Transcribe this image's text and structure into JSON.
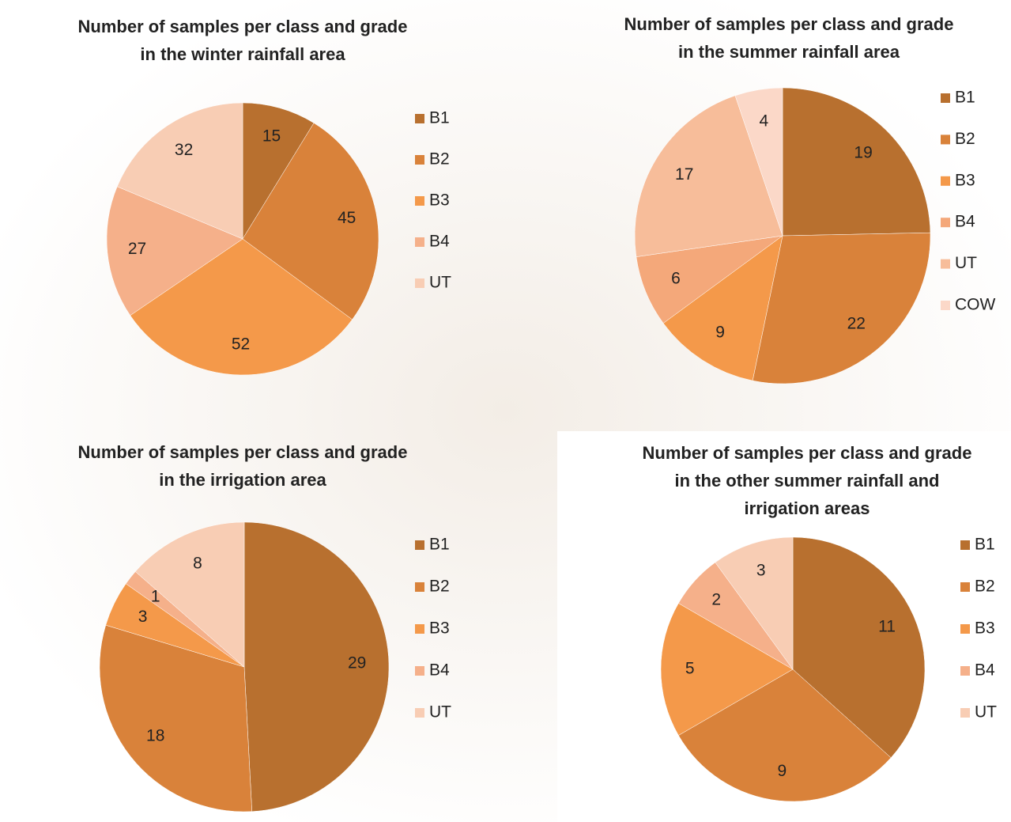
{
  "chart_data": [
    {
      "type": "pie",
      "title": [
        "Number of samples per class and grade",
        "in the winter rainfall area"
      ],
      "categories": [
        "B1",
        "B2",
        "B3",
        "B4",
        "UT"
      ],
      "values": [
        15,
        45,
        52,
        27,
        32
      ],
      "colors": [
        "#b8702f",
        "#d9823a",
        "#f4994a",
        "#f5b08a",
        "#f8cdb4"
      ]
    },
    {
      "type": "pie",
      "title": [
        "Number of samples per class and grade",
        "in the summer rainfall area"
      ],
      "categories": [
        "B1",
        "B2",
        "B3",
        "B4",
        "UT",
        "COW"
      ],
      "values": [
        19,
        22,
        9,
        6,
        17,
        4
      ],
      "colors": [
        "#b8702f",
        "#d9823a",
        "#f4994a",
        "#f4a87a",
        "#f7bd9a",
        "#fbd8c8"
      ]
    },
    {
      "type": "pie",
      "title": [
        "Number of samples per class and grade",
        "in the irrigation area"
      ],
      "categories": [
        "B1",
        "B2",
        "B3",
        "B4",
        "UT"
      ],
      "values": [
        29,
        18,
        3,
        1,
        8
      ],
      "colors": [
        "#b8702f",
        "#d9823a",
        "#f4994a",
        "#f5b08a",
        "#f8cdb4"
      ]
    },
    {
      "type": "pie",
      "title": [
        "Number of samples per class and grade",
        "in the other summer rainfall and",
        "irrigation areas"
      ],
      "categories": [
        "B1",
        "B2",
        "B3",
        "B4",
        "UT"
      ],
      "values": [
        11,
        9,
        5,
        2,
        3
      ],
      "colors": [
        "#b8702f",
        "#d9823a",
        "#f4994a",
        "#f5b08a",
        "#f8cdb4"
      ]
    }
  ]
}
